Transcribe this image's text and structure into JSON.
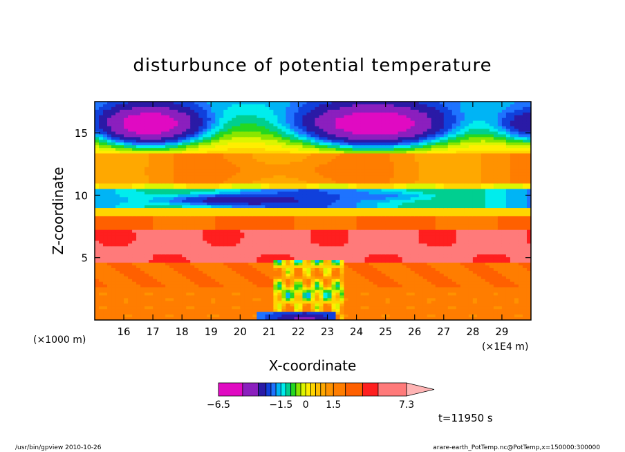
{
  "chart_data": {
    "type": "heatmap",
    "title": "disturbunce of potential temperature",
    "xlabel": "X-coordinate",
    "ylabel": "Z-coordinate",
    "x_unit_left": "(×1000 m)",
    "x_unit_right": "(×1E4 m)",
    "xlim": [
      15,
      30
    ],
    "ylim": [
      0,
      17.5
    ],
    "x_ticks": [
      16,
      17,
      18,
      19,
      20,
      21,
      22,
      23,
      24,
      25,
      26,
      27,
      28,
      29
    ],
    "y_ticks": [
      5,
      10,
      15
    ],
    "colorbar": {
      "levels": [
        -6.5,
        -5.0,
        -3.5,
        -2.6,
        -2.1,
        -1.8,
        -1.5,
        -1.2,
        -0.9,
        -0.6,
        -0.3,
        0,
        0.3,
        0.6,
        0.9,
        1.2,
        1.5,
        2.5,
        3.5,
        4.6,
        5.8,
        7.3
      ],
      "colors": [
        "#e00ac2",
        "#8b1fbe",
        "#2a1aa6",
        "#1040dc",
        "#1e73ff",
        "#00b4f5",
        "#00eded",
        "#00cf90",
        "#25d820",
        "#8ae600",
        "#dcf500",
        "#ffee00",
        "#ffd500",
        "#ffbf00",
        "#ffa800",
        "#ff9200",
        "#ff7d00",
        "#ff6000",
        "#ff1f1f",
        "#ff7a7a",
        "#ffb4b4"
      ],
      "tick_labels": [
        {
          "value": -6.5,
          "label": "−6.5"
        },
        {
          "value": -1.5,
          "label": "−1.5"
        },
        {
          "value": 0,
          "label": "0"
        },
        {
          "value": 1.5,
          "label": "1.5"
        },
        {
          "value": 7.3,
          "label": "7.3"
        }
      ]
    },
    "annotation_time": "t=11950 s",
    "footer_left": "/usr/bin/gpview   2010-10-26",
    "footer_right": "arare-earth_PotTemp.nc@PotTemp,x=150000:300000"
  }
}
